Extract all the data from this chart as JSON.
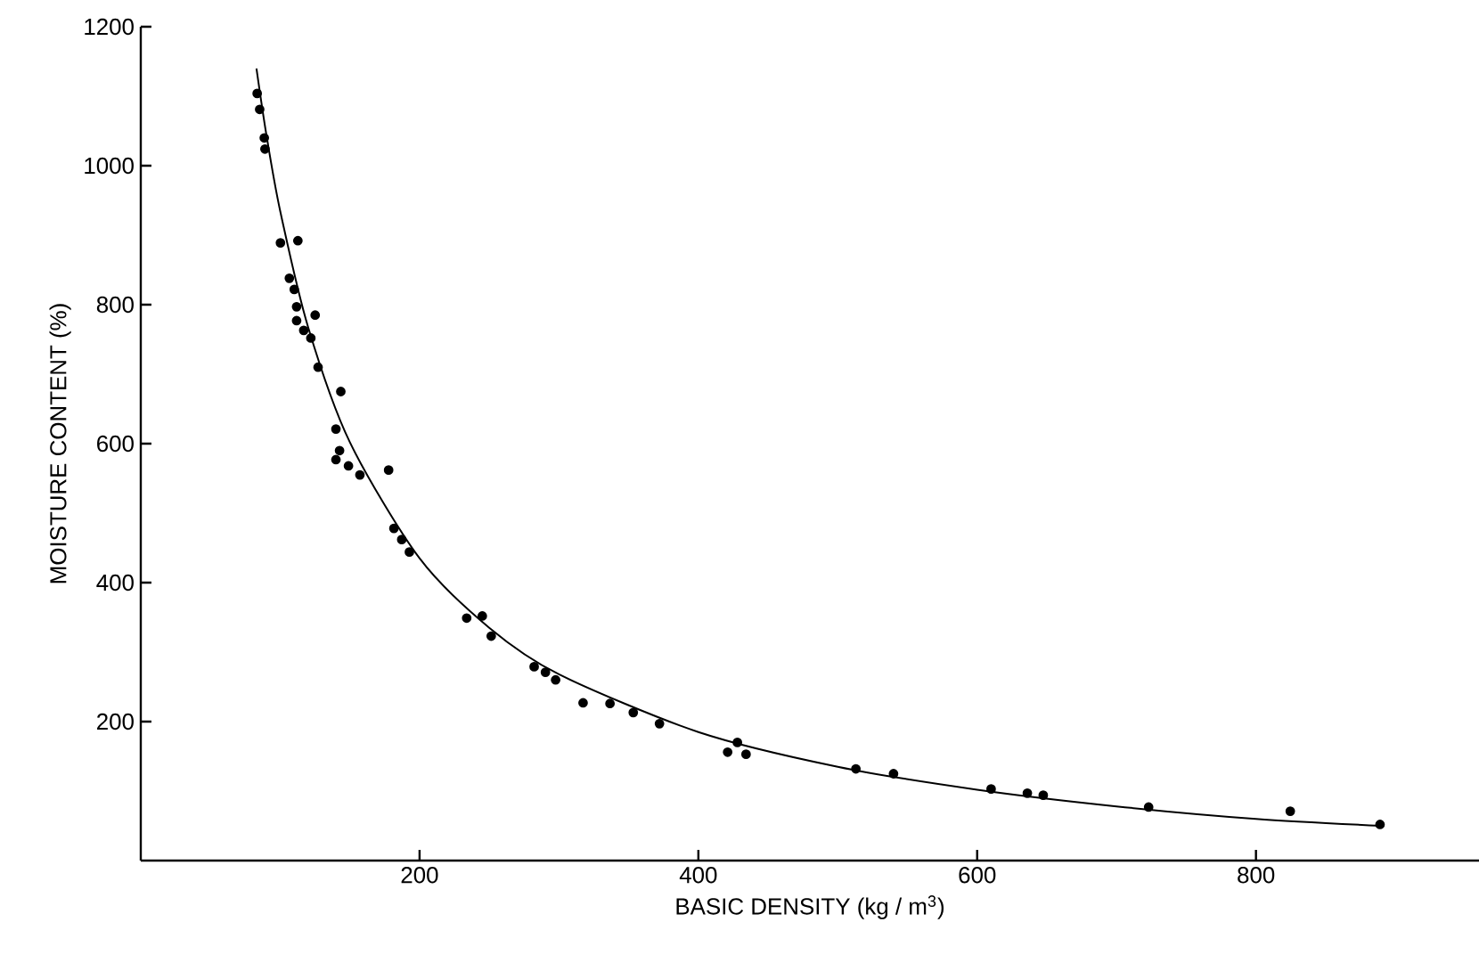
{
  "chart_data": {
    "type": "scatter",
    "xlabel": "BASIC DENSITY (kg / m$^{3}$)",
    "ylabel": "MOISTURE CONTENT (%)",
    "xlim": [
      0,
      960
    ],
    "ylim": [
      0,
      1200
    ],
    "xticks": [
      200,
      400,
      600,
      800
    ],
    "yticks": [
      200,
      400,
      600,
      800,
      1000,
      1200
    ],
    "grid": false,
    "series": [
      {
        "color": "#000000",
        "marker": "circle",
        "x": [
          83.5,
          85.3,
          88.6,
          89.1,
          100.2,
          112.7,
          106.6,
          110.1,
          111.8,
          111.8,
          125.1,
          116.9,
          122,
          127.2,
          143.5,
          140,
          142.6,
          140,
          149,
          157.2,
          177.8,
          181.6,
          187.2,
          192.7,
          233.8,
          245,
          251.4,
          282.2,
          290.3,
          297.6,
          317.3,
          336.6,
          353.3,
          372.1,
          428,
          421,
          434.2,
          513,
          540,
          610,
          636,
          647.4,
          723,
          824.6,
          889
        ],
        "values": [
          1104,
          1081,
          1040,
          1024,
          889,
          892,
          838,
          822,
          797,
          777,
          785,
          763,
          752,
          710,
          675,
          621,
          590,
          577,
          568,
          555,
          562,
          478,
          462,
          444,
          349,
          352,
          323,
          279,
          271,
          260,
          227,
          226,
          213,
          197,
          170,
          156,
          153,
          132,
          125,
          103,
          97,
          94,
          77,
          71,
          52
        ]
      },
      {
        "type": "line",
        "color": "#000000",
        "marker": "none",
        "line_style": "solid",
        "x": [
          83,
          90,
          100,
          120,
          150,
          200,
          250,
          300,
          400,
          500,
          600,
          700,
          800,
          890
        ],
        "values": [
          1140,
          1046,
          935,
          768,
          602,
          435,
          335,
          268,
          185,
          135,
          102,
          78,
          60,
          50
        ]
      }
    ]
  }
}
